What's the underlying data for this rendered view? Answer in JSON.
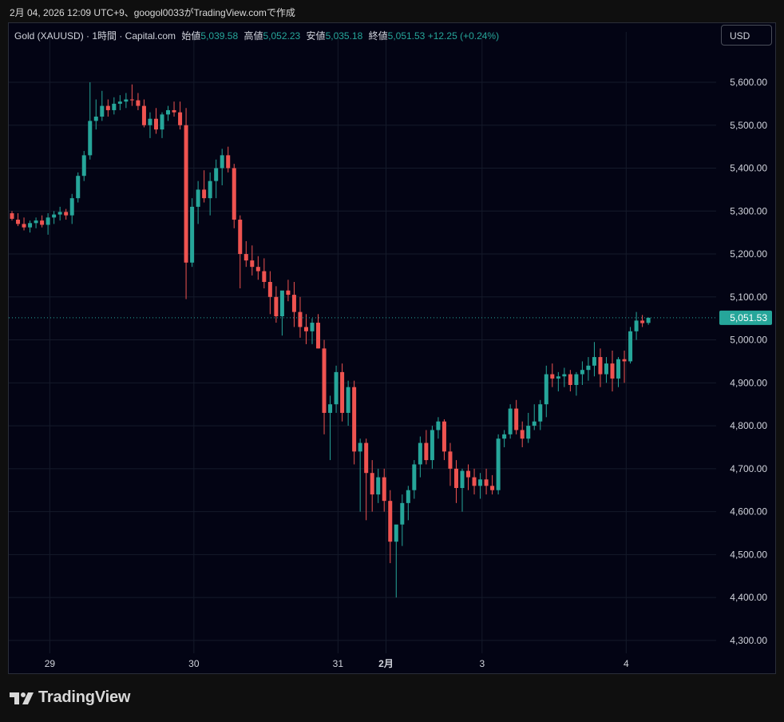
{
  "caption": "2月 04, 2026 12:09 UTC+9、googol0033がTradingView.comで作成",
  "legend": {
    "symbol": "Gold (XAUUSD) · 1時間 · Capital.com",
    "open_label": "始値",
    "open": "5,039.58",
    "high_label": "高値",
    "high": "5,052.23",
    "low_label": "安値",
    "low": "5,035.18",
    "close_label": "終値",
    "close": "5,051.53",
    "change": "+12.25 (+0.24%)"
  },
  "currency_button": "USD",
  "logo_text": "TradingView",
  "colors": {
    "up": "#26a69a",
    "down": "#ef5350",
    "background": "#030414",
    "grid": "#151a2a",
    "text": "#d1d4dc"
  },
  "chart_data": {
    "type": "candlestick",
    "y_axis_side": "right",
    "ylim": [
      4270,
      5680
    ],
    "y_ticks": [
      4300,
      4400,
      4500,
      4600,
      4700,
      4800,
      4900,
      5000,
      5100,
      5200,
      5300,
      5400,
      5500,
      5600
    ],
    "y_tick_labels": [
      "4,300.00",
      "4,400.00",
      "4,500.00",
      "4,600.00",
      "4,700.00",
      "4,800.00",
      "4,900.00",
      "5,000.00",
      "5,100.00",
      "5,200.00",
      "5,300.00",
      "5,400.00",
      "5,500.00",
      "5,600.00"
    ],
    "x_ticks": [
      {
        "index": 6.3,
        "label": "29",
        "bold": false
      },
      {
        "index": 30.3,
        "label": "30",
        "bold": false
      },
      {
        "index": 54.3,
        "label": "31",
        "bold": false
      },
      {
        "index": 62.3,
        "label": "2月",
        "bold": true
      },
      {
        "index": 78.3,
        "label": "3",
        "bold": false
      },
      {
        "index": 102.3,
        "label": "4",
        "bold": false
      }
    ],
    "last_price": 5051.53,
    "last_price_label": "5,051.53",
    "candles": [
      [
        5295,
        5300,
        5278,
        5282
      ],
      [
        5280,
        5295,
        5265,
        5270
      ],
      [
        5270,
        5285,
        5255,
        5262
      ],
      [
        5262,
        5278,
        5250,
        5272
      ],
      [
        5272,
        5285,
        5260,
        5278
      ],
      [
        5278,
        5290,
        5262,
        5268
      ],
      [
        5268,
        5295,
        5245,
        5285
      ],
      [
        5285,
        5300,
        5270,
        5292
      ],
      [
        5292,
        5310,
        5278,
        5298
      ],
      [
        5298,
        5305,
        5280,
        5290
      ],
      [
        5290,
        5340,
        5270,
        5330
      ],
      [
        5330,
        5390,
        5320,
        5382
      ],
      [
        5382,
        5440,
        5370,
        5430
      ],
      [
        5430,
        5600,
        5420,
        5510
      ],
      [
        5510,
        5560,
        5490,
        5520
      ],
      [
        5520,
        5580,
        5510,
        5545
      ],
      [
        5545,
        5560,
        5520,
        5535
      ],
      [
        5535,
        5565,
        5525,
        5550
      ],
      [
        5550,
        5570,
        5535,
        5555
      ],
      [
        5555,
        5575,
        5540,
        5560
      ],
      [
        5560,
        5595,
        5545,
        5558
      ],
      [
        5558,
        5575,
        5535,
        5545
      ],
      [
        5545,
        5560,
        5495,
        5500
      ],
      [
        5500,
        5530,
        5470,
        5515
      ],
      [
        5515,
        5540,
        5480,
        5490
      ],
      [
        5490,
        5530,
        5470,
        5525
      ],
      [
        5525,
        5545,
        5510,
        5535
      ],
      [
        5535,
        5555,
        5520,
        5530
      ],
      [
        5530,
        5555,
        5490,
        5500
      ],
      [
        5500,
        5540,
        5095,
        5180
      ],
      [
        5180,
        5330,
        5170,
        5310
      ],
      [
        5310,
        5370,
        5270,
        5350
      ],
      [
        5350,
        5395,
        5320,
        5330
      ],
      [
        5330,
        5390,
        5290,
        5370
      ],
      [
        5370,
        5420,
        5330,
        5400
      ],
      [
        5400,
        5445,
        5360,
        5430
      ],
      [
        5430,
        5450,
        5390,
        5400
      ],
      [
        5400,
        5410,
        5260,
        5280
      ],
      [
        5280,
        5290,
        5120,
        5200
      ],
      [
        5200,
        5230,
        5170,
        5185
      ],
      [
        5185,
        5220,
        5150,
        5170
      ],
      [
        5170,
        5195,
        5140,
        5160
      ],
      [
        5160,
        5190,
        5120,
        5135
      ],
      [
        5135,
        5160,
        5060,
        5100
      ],
      [
        5100,
        5125,
        5040,
        5055
      ],
      [
        5055,
        5110,
        5010,
        5115
      ],
      [
        5115,
        5140,
        5090,
        5105
      ],
      [
        5105,
        5135,
        5030,
        5065
      ],
      [
        5065,
        5100,
        5005,
        5030
      ],
      [
        5030,
        5060,
        4990,
        5020
      ],
      [
        5020,
        5050,
        4990,
        5040
      ],
      [
        5040,
        5060,
        4980,
        4980
      ],
      [
        4980,
        5000,
        4780,
        4830
      ],
      [
        4830,
        4870,
        4720,
        4850
      ],
      [
        4850,
        4940,
        4830,
        4925
      ],
      [
        4925,
        4945,
        4810,
        4830
      ],
      [
        4830,
        4905,
        4800,
        4890
      ],
      [
        4890,
        4905,
        4710,
        4740
      ],
      [
        4740,
        4770,
        4600,
        4760
      ],
      [
        4760,
        4770,
        4580,
        4690
      ],
      [
        4690,
        4720,
        4600,
        4640
      ],
      [
        4640,
        4700,
        4620,
        4680
      ],
      [
        4680,
        4700,
        4600,
        4625
      ],
      [
        4625,
        4650,
        4480,
        4530
      ],
      [
        4530,
        4560,
        4400,
        4570
      ],
      [
        4570,
        4640,
        4520,
        4620
      ],
      [
        4620,
        4660,
        4580,
        4650
      ],
      [
        4650,
        4720,
        4630,
        4710
      ],
      [
        4710,
        4775,
        4680,
        4760
      ],
      [
        4760,
        4790,
        4710,
        4720
      ],
      [
        4720,
        4800,
        4700,
        4790
      ],
      [
        4790,
        4820,
        4770,
        4810
      ],
      [
        4810,
        4815,
        4720,
        4740
      ],
      [
        4740,
        4760,
        4660,
        4700
      ],
      [
        4700,
        4720,
        4620,
        4655
      ],
      [
        4655,
        4700,
        4600,
        4695
      ],
      [
        4695,
        4710,
        4650,
        4680
      ],
      [
        4680,
        4700,
        4640,
        4660
      ],
      [
        4660,
        4690,
        4630,
        4675
      ],
      [
        4675,
        4700,
        4640,
        4660
      ],
      [
        4660,
        4685,
        4640,
        4650
      ],
      [
        4650,
        4780,
        4640,
        4770
      ],
      [
        4770,
        4790,
        4750,
        4780
      ],
      [
        4780,
        4850,
        4770,
        4840
      ],
      [
        4840,
        4860,
        4780,
        4790
      ],
      [
        4790,
        4810,
        4750,
        4770
      ],
      [
        4770,
        4830,
        4760,
        4800
      ],
      [
        4800,
        4850,
        4790,
        4810
      ],
      [
        4810,
        4860,
        4790,
        4850
      ],
      [
        4850,
        4940,
        4820,
        4920
      ],
      [
        4920,
        4945,
        4890,
        4910
      ],
      [
        4910,
        4925,
        4880,
        4915
      ],
      [
        4915,
        4935,
        4890,
        4920
      ],
      [
        4920,
        4930,
        4880,
        4895
      ],
      [
        4895,
        4925,
        4870,
        4920
      ],
      [
        4920,
        4950,
        4895,
        4930
      ],
      [
        4930,
        4960,
        4905,
        4940
      ],
      [
        4940,
        4995,
        4915,
        4960
      ],
      [
        4960,
        4980,
        4890,
        4920
      ],
      [
        4920,
        4960,
        4900,
        4945
      ],
      [
        4945,
        4975,
        4880,
        4910
      ],
      [
        4910,
        4960,
        4890,
        4955
      ],
      [
        4955,
        4975,
        4900,
        4950
      ],
      [
        4950,
        5030,
        4945,
        5020
      ],
      [
        5020,
        5065,
        5000,
        5045
      ],
      [
        5045,
        5058,
        5030,
        5039
      ],
      [
        5039.58,
        5052.23,
        5035.18,
        5051.53
      ]
    ]
  }
}
